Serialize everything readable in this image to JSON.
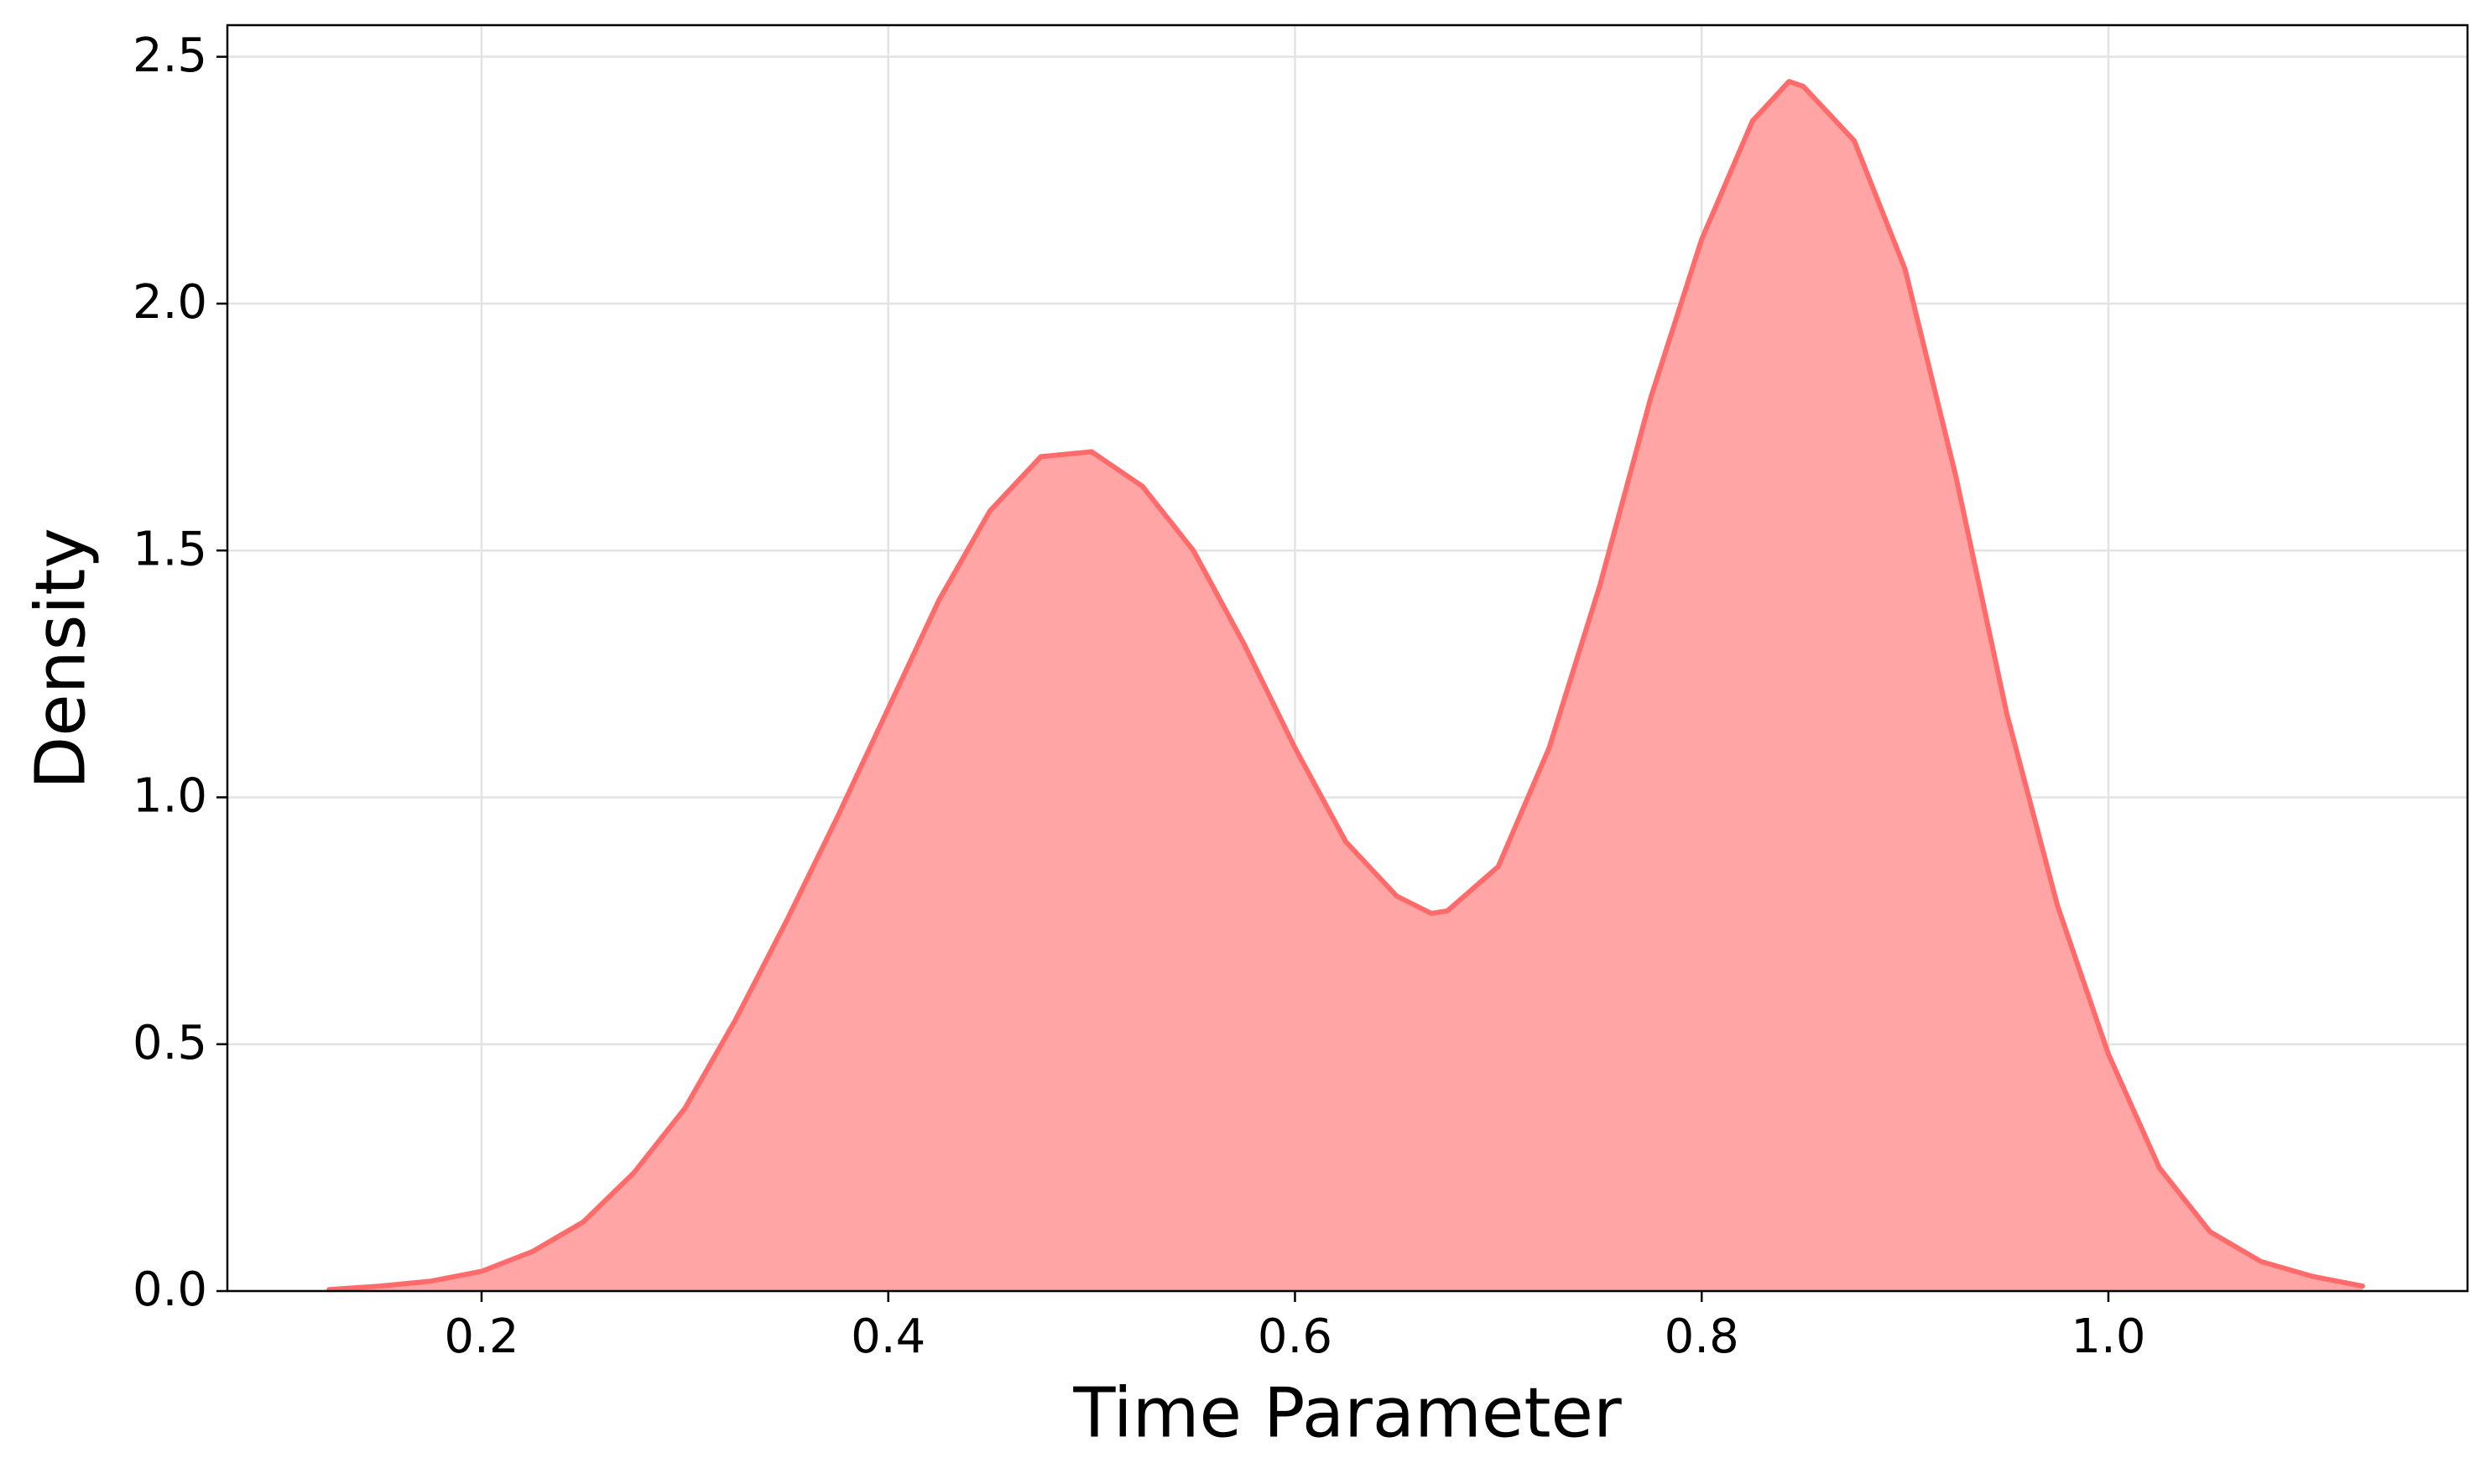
{
  "chart_data": {
    "type": "area",
    "x_label": "Time Parameter",
    "y_label": "Density",
    "x": [
      0.125,
      0.15,
      0.175,
      0.2,
      0.225,
      0.25,
      0.275,
      0.3,
      0.325,
      0.35,
      0.375,
      0.4,
      0.425,
      0.45,
      0.475,
      0.5,
      0.525,
      0.55,
      0.575,
      0.6,
      0.625,
      0.65,
      0.667,
      0.675,
      0.7,
      0.725,
      0.75,
      0.775,
      0.8,
      0.825,
      0.843,
      0.85,
      0.875,
      0.9,
      0.925,
      0.95,
      0.975,
      1.0,
      1.025,
      1.05,
      1.075,
      1.1,
      1.125
    ],
    "values": [
      0.003,
      0.01,
      0.02,
      0.04,
      0.08,
      0.14,
      0.24,
      0.37,
      0.55,
      0.75,
      0.96,
      1.18,
      1.4,
      1.58,
      1.69,
      1.7,
      1.63,
      1.5,
      1.31,
      1.1,
      0.91,
      0.8,
      0.765,
      0.77,
      0.86,
      1.1,
      1.43,
      1.81,
      2.13,
      2.37,
      2.45,
      2.44,
      2.33,
      2.07,
      1.65,
      1.17,
      0.78,
      0.48,
      0.25,
      0.12,
      0.06,
      0.03,
      0.01
    ],
    "color": "#ff6b6b",
    "fill_color": "#ffa5a5",
    "xlim": [
      0.075,
      1.1766
    ],
    "xticks": [
      0.2,
      0.4,
      0.6,
      0.8,
      {
        "value": 1.0,
        "label": "1.0"
      }
    ],
    "ylim": [
      0,
      2.564
    ],
    "yticks": [
      {
        "value": 0,
        "label": "0.0"
      },
      0.5,
      {
        "value": 1,
        "label": "1.0"
      },
      1.5,
      {
        "value": 2,
        "label": "2.0"
      },
      2.5
    ],
    "grid": true
  }
}
